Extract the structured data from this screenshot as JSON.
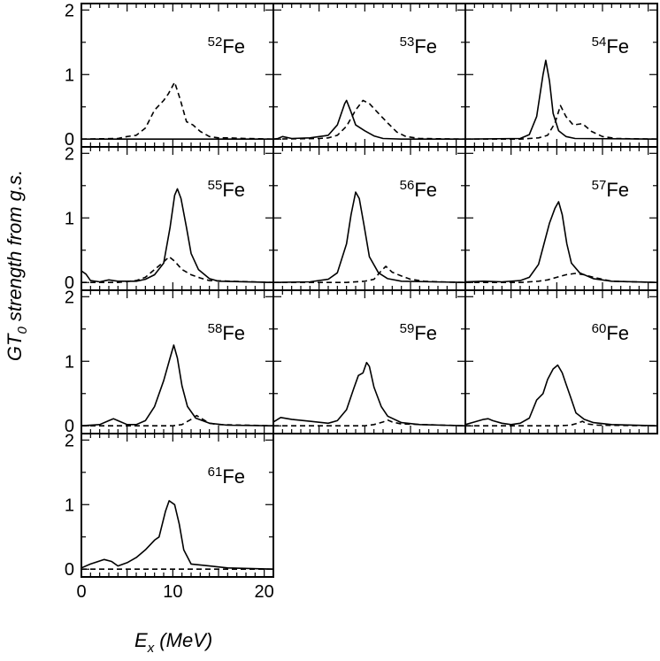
{
  "chart_data": {
    "type": "line",
    "title": "",
    "xlabel": "E",
    "xlabel_subscript": "x",
    "xlabel_unit": " (MeV)",
    "ylabel": "GT",
    "ylabel_subscript": "0",
    "ylabel_rest": " strength from g.s.",
    "xlim": [
      0,
      21
    ],
    "ylim": [
      -0.12,
      2.1
    ],
    "xticks": [
      0,
      10,
      20
    ],
    "yticks": [
      0,
      1,
      2
    ],
    "legend": "none",
    "series_styles": {
      "solid": "shell-model",
      "dashed": "comparison"
    },
    "panels": [
      {
        "mass": "52",
        "element": "Fe",
        "solid": [
          [
            0,
            0
          ],
          [
            21,
            0
          ]
        ],
        "dashed": [
          [
            0,
            0
          ],
          [
            4,
            0.01
          ],
          [
            5,
            0.04
          ],
          [
            6,
            0.06
          ],
          [
            7,
            0.17
          ],
          [
            8,
            0.45
          ],
          [
            9,
            0.6
          ],
          [
            9.5,
            0.7
          ],
          [
            10.2,
            0.88
          ],
          [
            10.8,
            0.62
          ],
          [
            11.5,
            0.27
          ],
          [
            12.2,
            0.22
          ],
          [
            13,
            0.12
          ],
          [
            14,
            0.04
          ],
          [
            15,
            0.02
          ],
          [
            16,
            0.02
          ],
          [
            18,
            0.01
          ],
          [
            21,
            0
          ]
        ]
      },
      {
        "mass": "53",
        "element": "Fe",
        "solid": [
          [
            0,
            0
          ],
          [
            0.5,
            0.01
          ],
          [
            1,
            0.04
          ],
          [
            2,
            0.01
          ],
          [
            4,
            0.02
          ],
          [
            6,
            0.06
          ],
          [
            7,
            0.22
          ],
          [
            7.8,
            0.55
          ],
          [
            8,
            0.6
          ],
          [
            8.5,
            0.42
          ],
          [
            9,
            0.22
          ],
          [
            10,
            0.13
          ],
          [
            11,
            0.05
          ],
          [
            12,
            0.01
          ],
          [
            14,
            0
          ],
          [
            21,
            0
          ]
        ],
        "dashed": [
          [
            0,
            0
          ],
          [
            5,
            0.01
          ],
          [
            6,
            0.02
          ],
          [
            7,
            0.06
          ],
          [
            8,
            0.2
          ],
          [
            9,
            0.45
          ],
          [
            9.8,
            0.6
          ],
          [
            10.5,
            0.55
          ],
          [
            11.5,
            0.4
          ],
          [
            12.5,
            0.25
          ],
          [
            13.5,
            0.11
          ],
          [
            14.5,
            0.04
          ],
          [
            16,
            0.01
          ],
          [
            21,
            0
          ]
        ]
      },
      {
        "mass": "54",
        "element": "Fe",
        "solid": [
          [
            0,
            0
          ],
          [
            6,
            0.01
          ],
          [
            7,
            0.07
          ],
          [
            7.8,
            0.35
          ],
          [
            8.5,
            1.0
          ],
          [
            8.8,
            1.22
          ],
          [
            9.2,
            0.9
          ],
          [
            9.6,
            0.4
          ],
          [
            10.2,
            0.13
          ],
          [
            11,
            0.04
          ],
          [
            12,
            0.01
          ],
          [
            21,
            0
          ]
        ],
        "dashed": [
          [
            0,
            0
          ],
          [
            6,
            0
          ],
          [
            8,
            0.02
          ],
          [
            9,
            0.06
          ],
          [
            9.8,
            0.25
          ],
          [
            10.4,
            0.52
          ],
          [
            11,
            0.35
          ],
          [
            11.8,
            0.22
          ],
          [
            12.8,
            0.24
          ],
          [
            13.8,
            0.12
          ],
          [
            15,
            0.04
          ],
          [
            16.5,
            0.01
          ],
          [
            21,
            0
          ]
        ]
      },
      {
        "mass": "55",
        "element": "Fe",
        "solid": [
          [
            0,
            0.18
          ],
          [
            0.5,
            0.13
          ],
          [
            1,
            0.03
          ],
          [
            2,
            0.01
          ],
          [
            3,
            0.04
          ],
          [
            4,
            0.02
          ],
          [
            6,
            0.02
          ],
          [
            7,
            0.05
          ],
          [
            8,
            0.12
          ],
          [
            9,
            0.3
          ],
          [
            9.7,
            0.85
          ],
          [
            10.2,
            1.35
          ],
          [
            10.5,
            1.45
          ],
          [
            10.9,
            1.3
          ],
          [
            11.5,
            0.85
          ],
          [
            12,
            0.45
          ],
          [
            12.8,
            0.2
          ],
          [
            14,
            0.06
          ],
          [
            15,
            0.02
          ],
          [
            21,
            0
          ]
        ],
        "dashed": [
          [
            0,
            0
          ],
          [
            4,
            0
          ],
          [
            6,
            0.03
          ],
          [
            7,
            0.08
          ],
          [
            8,
            0.2
          ],
          [
            9,
            0.32
          ],
          [
            9.6,
            0.4
          ],
          [
            10.2,
            0.33
          ],
          [
            11,
            0.2
          ],
          [
            12,
            0.12
          ],
          [
            13,
            0.07
          ],
          [
            14,
            0.03
          ],
          [
            21,
            0
          ]
        ]
      },
      {
        "mass": "56",
        "element": "Fe",
        "solid": [
          [
            0,
            0
          ],
          [
            4,
            0.01
          ],
          [
            6,
            0.05
          ],
          [
            7,
            0.15
          ],
          [
            8,
            0.6
          ],
          [
            8.5,
            1.05
          ],
          [
            9,
            1.4
          ],
          [
            9.4,
            1.3
          ],
          [
            9.9,
            0.9
          ],
          [
            10.5,
            0.4
          ],
          [
            11.5,
            0.15
          ],
          [
            12.5,
            0.06
          ],
          [
            14,
            0.02
          ],
          [
            21,
            0
          ]
        ],
        "dashed": [
          [
            0,
            0
          ],
          [
            8,
            0
          ],
          [
            10,
            0.02
          ],
          [
            11,
            0.05
          ],
          [
            11.8,
            0.18
          ],
          [
            12.3,
            0.25
          ],
          [
            13,
            0.16
          ],
          [
            14,
            0.1
          ],
          [
            15,
            0.05
          ],
          [
            16.5,
            0.02
          ],
          [
            18,
            0.01
          ],
          [
            21,
            0
          ]
        ]
      },
      {
        "mass": "57",
        "element": "Fe",
        "solid": [
          [
            0,
            0.01
          ],
          [
            2,
            0.02
          ],
          [
            4,
            0.01
          ],
          [
            6,
            0.03
          ],
          [
            7,
            0.08
          ],
          [
            8,
            0.28
          ],
          [
            8.6,
            0.6
          ],
          [
            9.2,
            0.92
          ],
          [
            9.8,
            1.15
          ],
          [
            10.2,
            1.25
          ],
          [
            10.6,
            1.05
          ],
          [
            11.1,
            0.6
          ],
          [
            11.6,
            0.3
          ],
          [
            12.5,
            0.15
          ],
          [
            14,
            0.06
          ],
          [
            16,
            0.02
          ],
          [
            21,
            0
          ]
        ],
        "dashed": [
          [
            0,
            0
          ],
          [
            6,
            0
          ],
          [
            8,
            0.02
          ],
          [
            9,
            0.04
          ],
          [
            10,
            0.08
          ],
          [
            11,
            0.12
          ],
          [
            12,
            0.14
          ],
          [
            13,
            0.12
          ],
          [
            14,
            0.08
          ],
          [
            15,
            0.05
          ],
          [
            16,
            0.02
          ],
          [
            21,
            0
          ]
        ]
      },
      {
        "mass": "58",
        "element": "Fe",
        "solid": [
          [
            0,
            0
          ],
          [
            2,
            0.02
          ],
          [
            3,
            0.08
          ],
          [
            3.5,
            0.11
          ],
          [
            4,
            0.08
          ],
          [
            5,
            0.02
          ],
          [
            6,
            0.02
          ],
          [
            7,
            0.08
          ],
          [
            8,
            0.3
          ],
          [
            9,
            0.7
          ],
          [
            9.7,
            1.05
          ],
          [
            10.1,
            1.25
          ],
          [
            10.5,
            1.05
          ],
          [
            11,
            0.62
          ],
          [
            11.6,
            0.3
          ],
          [
            12.5,
            0.12
          ],
          [
            14,
            0.04
          ],
          [
            16,
            0.01
          ],
          [
            21,
            0
          ]
        ],
        "dashed": [
          [
            0,
            0
          ],
          [
            10,
            0
          ],
          [
            11,
            0.02
          ],
          [
            12,
            0.1
          ],
          [
            12.6,
            0.16
          ],
          [
            13.3,
            0.1
          ],
          [
            14,
            0.04
          ],
          [
            15,
            0.02
          ],
          [
            21,
            0
          ]
        ]
      },
      {
        "mass": "59",
        "element": "Fe",
        "solid": [
          [
            0,
            0.06
          ],
          [
            0.8,
            0.13
          ],
          [
            2,
            0.1
          ],
          [
            4,
            0.07
          ],
          [
            6,
            0.04
          ],
          [
            7,
            0.08
          ],
          [
            8,
            0.25
          ],
          [
            8.8,
            0.58
          ],
          [
            9.3,
            0.78
          ],
          [
            9.8,
            0.82
          ],
          [
            10.2,
            0.98
          ],
          [
            10.5,
            0.92
          ],
          [
            11,
            0.6
          ],
          [
            11.8,
            0.3
          ],
          [
            12.5,
            0.15
          ],
          [
            14,
            0.05
          ],
          [
            16,
            0.02
          ],
          [
            21,
            0
          ]
        ],
        "dashed": [
          [
            0,
            0
          ],
          [
            10,
            0
          ],
          [
            11,
            0.02
          ],
          [
            12,
            0.06
          ],
          [
            12.5,
            0.09
          ],
          [
            13,
            0.06
          ],
          [
            14,
            0.03
          ],
          [
            21,
            0
          ]
        ]
      },
      {
        "mass": "60",
        "element": "Fe",
        "solid": [
          [
            0,
            0.02
          ],
          [
            1,
            0.06
          ],
          [
            2,
            0.1
          ],
          [
            2.5,
            0.11
          ],
          [
            3,
            0.08
          ],
          [
            4,
            0.04
          ],
          [
            5,
            0.02
          ],
          [
            6,
            0.04
          ],
          [
            7,
            0.12
          ],
          [
            7.8,
            0.4
          ],
          [
            8.5,
            0.5
          ],
          [
            9,
            0.72
          ],
          [
            9.6,
            0.88
          ],
          [
            10.1,
            0.94
          ],
          [
            10.6,
            0.82
          ],
          [
            11,
            0.65
          ],
          [
            11.5,
            0.45
          ],
          [
            12.1,
            0.2
          ],
          [
            13,
            0.1
          ],
          [
            14,
            0.05
          ],
          [
            16,
            0.02
          ],
          [
            21,
            0
          ]
        ],
        "dashed": [
          [
            0,
            0
          ],
          [
            10,
            0
          ],
          [
            11.5,
            0.01
          ],
          [
            12.3,
            0.04
          ],
          [
            12.8,
            0.07
          ],
          [
            13.3,
            0.03
          ],
          [
            14.5,
            0.01
          ],
          [
            21,
            0
          ]
        ]
      },
      {
        "mass": "61",
        "element": "Fe",
        "solid": [
          [
            0,
            0.02
          ],
          [
            1,
            0.08
          ],
          [
            2.5,
            0.15
          ],
          [
            3.3,
            0.12
          ],
          [
            4,
            0.05
          ],
          [
            5,
            0.1
          ],
          [
            6,
            0.18
          ],
          [
            7,
            0.3
          ],
          [
            8,
            0.45
          ],
          [
            8.5,
            0.5
          ],
          [
            9.2,
            0.9
          ],
          [
            9.6,
            1.06
          ],
          [
            10.2,
            1.0
          ],
          [
            10.7,
            0.7
          ],
          [
            11.2,
            0.3
          ],
          [
            12,
            0.08
          ],
          [
            14,
            0.05
          ],
          [
            16,
            0.02
          ],
          [
            21,
            0
          ]
        ],
        "dashed": [
          [
            0,
            0
          ],
          [
            21,
            0
          ]
        ]
      }
    ]
  }
}
